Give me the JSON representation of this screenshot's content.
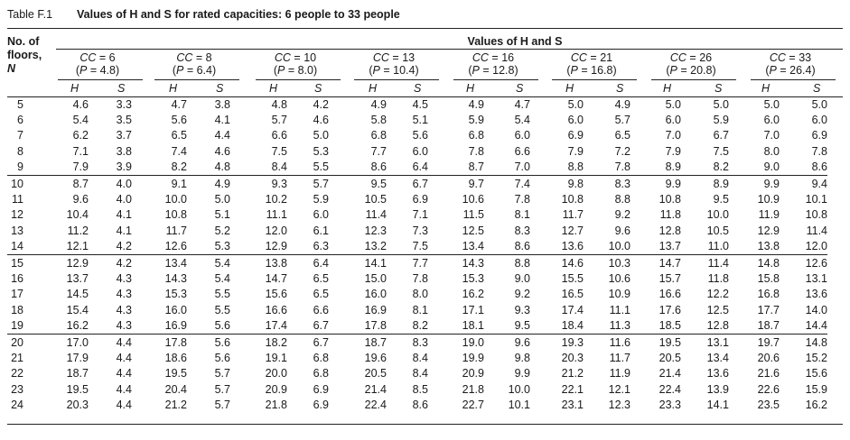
{
  "title": {
    "label": "Table F.1",
    "caption": "Values of H and S for rated capacities: 6 people to 33 people"
  },
  "stub_header": [
    "No. of",
    "floors,",
    "N"
  ],
  "spanner": "Values of H and S",
  "groups": [
    {
      "cc": "CC = 6",
      "p": "(P = 4.8)"
    },
    {
      "cc": "CC = 8",
      "p": "(P = 6.4)"
    },
    {
      "cc": "CC = 10",
      "p": "(P = 8.0)"
    },
    {
      "cc": "CC = 13",
      "p": "(P = 10.4)"
    },
    {
      "cc": "CC = 16",
      "p": "(P = 12.8)"
    },
    {
      "cc": "CC = 21",
      "p": "(P = 16.8)"
    },
    {
      "cc": "CC = 26",
      "p": "(P = 20.8)"
    },
    {
      "cc": "CC = 33",
      "p": "(P = 26.4)"
    }
  ],
  "subheaders": [
    "H",
    "S"
  ],
  "rows": [
    [
      "5",
      "4.6",
      "3.3",
      "4.7",
      "3.8",
      "4.8",
      "4.2",
      "4.9",
      "4.5",
      "4.9",
      "4.7",
      "5.0",
      "4.9",
      "5.0",
      "5.0",
      "5.0",
      "5.0"
    ],
    [
      "6",
      "5.4",
      "3.5",
      "5.6",
      "4.1",
      "5.7",
      "4.6",
      "5.8",
      "5.1",
      "5.9",
      "5.4",
      "6.0",
      "5.7",
      "6.0",
      "5.9",
      "6.0",
      "6.0"
    ],
    [
      "7",
      "6.2",
      "3.7",
      "6.5",
      "4.4",
      "6.6",
      "5.0",
      "6.8",
      "5.6",
      "6.8",
      "6.0",
      "6.9",
      "6.5",
      "7.0",
      "6.7",
      "7.0",
      "6.9"
    ],
    [
      "8",
      "7.1",
      "3.8",
      "7.4",
      "4.6",
      "7.5",
      "5.3",
      "7.7",
      "6.0",
      "7.8",
      "6.6",
      "7.9",
      "7.2",
      "7.9",
      "7.5",
      "8.0",
      "7.8"
    ],
    [
      "9",
      "7.9",
      "3.9",
      "8.2",
      "4.8",
      "8.4",
      "5.5",
      "8.6",
      "6.4",
      "8.7",
      "7.0",
      "8.8",
      "7.8",
      "8.9",
      "8.2",
      "9.0",
      "8.6"
    ],
    [
      "10",
      "8.7",
      "4.0",
      "9.1",
      "4.9",
      "9.3",
      "5.7",
      "9.5",
      "6.7",
      "9.7",
      "7.4",
      "9.8",
      "8.3",
      "9.9",
      "8.9",
      "9.9",
      "9.4"
    ],
    [
      "11",
      "9.6",
      "4.0",
      "10.0",
      "5.0",
      "10.2",
      "5.9",
      "10.5",
      "6.9",
      "10.6",
      "7.8",
      "10.8",
      "8.8",
      "10.8",
      "9.5",
      "10.9",
      "10.1"
    ],
    [
      "12",
      "10.4",
      "4.1",
      "10.8",
      "5.1",
      "11.1",
      "6.0",
      "11.4",
      "7.1",
      "11.5",
      "8.1",
      "11.7",
      "9.2",
      "11.8",
      "10.0",
      "11.9",
      "10.8"
    ],
    [
      "13",
      "11.2",
      "4.1",
      "11.7",
      "5.2",
      "12.0",
      "6.1",
      "12.3",
      "7.3",
      "12.5",
      "8.3",
      "12.7",
      "9.6",
      "12.8",
      "10.5",
      "12.9",
      "11.4"
    ],
    [
      "14",
      "12.1",
      "4.2",
      "12.6",
      "5.3",
      "12.9",
      "6.3",
      "13.2",
      "7.5",
      "13.4",
      "8.6",
      "13.6",
      "10.0",
      "13.7",
      "11.0",
      "13.8",
      "12.0"
    ],
    [
      "15",
      "12.9",
      "4.2",
      "13.4",
      "5.4",
      "13.8",
      "6.4",
      "14.1",
      "7.7",
      "14.3",
      "8.8",
      "14.6",
      "10.3",
      "14.7",
      "11.4",
      "14.8",
      "12.6"
    ],
    [
      "16",
      "13.7",
      "4.3",
      "14.3",
      "5.4",
      "14.7",
      "6.5",
      "15.0",
      "7.8",
      "15.3",
      "9.0",
      "15.5",
      "10.6",
      "15.7",
      "11.8",
      "15.8",
      "13.1"
    ],
    [
      "17",
      "14.5",
      "4.3",
      "15.3",
      "5.5",
      "15.6",
      "6.5",
      "16.0",
      "8.0",
      "16.2",
      "9.2",
      "16.5",
      "10.9",
      "16.6",
      "12.2",
      "16.8",
      "13.6"
    ],
    [
      "18",
      "15.4",
      "4.3",
      "16.0",
      "5.5",
      "16.6",
      "6.6",
      "16.9",
      "8.1",
      "17.1",
      "9.3",
      "17.4",
      "11.1",
      "17.6",
      "12.5",
      "17.7",
      "14.0"
    ],
    [
      "19",
      "16.2",
      "4.3",
      "16.9",
      "5.6",
      "17.4",
      "6.7",
      "17.8",
      "8.2",
      "18.1",
      "9.5",
      "18.4",
      "11.3",
      "18.5",
      "12.8",
      "18.7",
      "14.4"
    ],
    [
      "20",
      "17.0",
      "4.4",
      "17.8",
      "5.6",
      "18.2",
      "6.7",
      "18.7",
      "8.3",
      "19.0",
      "9.6",
      "19.3",
      "11.6",
      "19.5",
      "13.1",
      "19.7",
      "14.8"
    ],
    [
      "21",
      "17.9",
      "4.4",
      "18.6",
      "5.6",
      "19.1",
      "6.8",
      "19.6",
      "8.4",
      "19.9",
      "9.8",
      "20.3",
      "11.7",
      "20.5",
      "13.4",
      "20.6",
      "15.2"
    ],
    [
      "22",
      "18.7",
      "4.4",
      "19.5",
      "5.7",
      "20.0",
      "6.8",
      "20.5",
      "8.4",
      "20.9",
      "9.9",
      "21.2",
      "11.9",
      "21.4",
      "13.6",
      "21.6",
      "15.6"
    ],
    [
      "23",
      "19.5",
      "4.4",
      "20.4",
      "5.7",
      "20.9",
      "6.9",
      "21.4",
      "8.5",
      "21.8",
      "10.0",
      "22.1",
      "12.1",
      "22.4",
      "13.9",
      "22.6",
      "15.9"
    ],
    [
      "24",
      "20.3",
      "4.4",
      "21.2",
      "5.7",
      "21.8",
      "6.9",
      "22.4",
      "8.6",
      "22.7",
      "10.1",
      "23.1",
      "12.3",
      "23.3",
      "14.1",
      "23.5",
      "16.2"
    ]
  ]
}
